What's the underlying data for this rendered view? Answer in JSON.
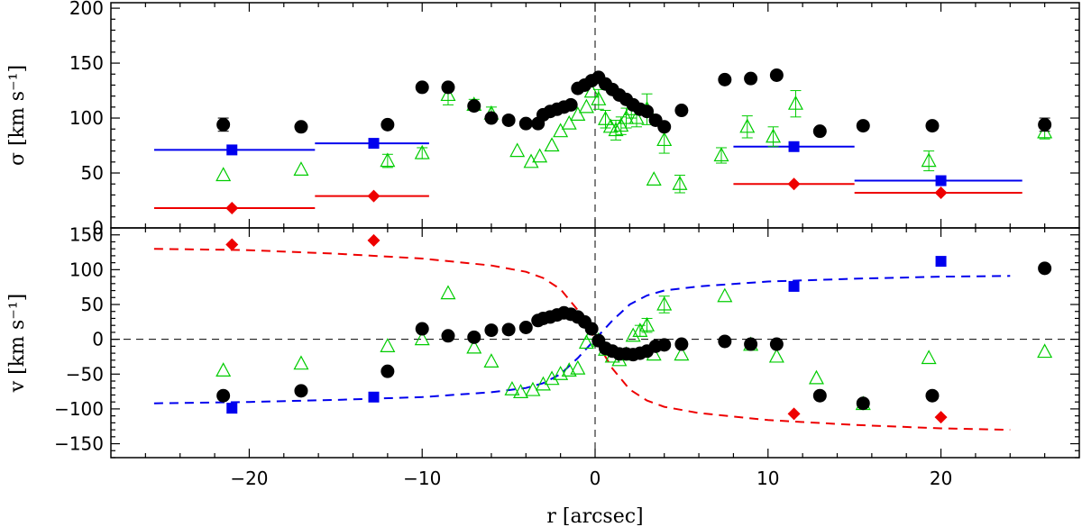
{
  "chart_data": [
    {
      "type": "scatter",
      "panel": "top",
      "xlabel": "r [arcsec]",
      "ylabel": "σ [km s⁻¹]",
      "xlim": [
        -28,
        28
      ],
      "ylim": [
        0,
        205
      ],
      "yticks": [
        0,
        50,
        100,
        150,
        200
      ],
      "series": [
        {
          "name": "black circles",
          "color": "#000000",
          "marker": "circle",
          "points": [
            [
              -21.5,
              94
            ],
            [
              -17,
              92
            ],
            [
              -12,
              94
            ],
            [
              -10,
              128
            ],
            [
              -8.5,
              128
            ],
            [
              -7,
              111
            ],
            [
              -6,
              100
            ],
            [
              -5,
              98
            ],
            [
              -4,
              95
            ],
            [
              -3.3,
              95
            ],
            [
              -3,
              103
            ],
            [
              -2.6,
              106
            ],
            [
              -2.2,
              108
            ],
            [
              -1.8,
              110
            ],
            [
              -1.4,
              112
            ],
            [
              -1,
              127
            ],
            [
              -0.6,
              130
            ],
            [
              -0.2,
              134
            ],
            [
              0.2,
              137
            ],
            [
              0.6,
              131
            ],
            [
              1,
              126
            ],
            [
              1.4,
              121
            ],
            [
              1.8,
              117
            ],
            [
              2.2,
              112
            ],
            [
              2.6,
              108
            ],
            [
              3,
              106
            ],
            [
              3.5,
              98
            ],
            [
              4,
              92
            ],
            [
              5,
              107
            ],
            [
              7.5,
              135
            ],
            [
              9,
              136
            ],
            [
              10.5,
              139
            ],
            [
              13,
              88
            ],
            [
              15.5,
              93
            ],
            [
              19.5,
              93
            ],
            [
              26,
              94
            ]
          ],
          "errors": [
            [
              -21.5,
              6
            ],
            [
              26,
              6
            ]
          ]
        },
        {
          "name": "green triangles",
          "color": "#00cc00",
          "marker": "triangle-open",
          "points": [
            [
              -21.5,
              48
            ],
            [
              -17,
              53
            ],
            [
              -12,
              61
            ],
            [
              -10,
              68
            ],
            [
              -8.5,
              121
            ],
            [
              -7,
              112
            ],
            [
              -6,
              104
            ],
            [
              -4.5,
              70
            ],
            [
              -3.7,
              60
            ],
            [
              -3.2,
              65
            ],
            [
              -2.5,
              75
            ],
            [
              -2,
              88
            ],
            [
              -1.5,
              95
            ],
            [
              -1,
              103
            ],
            [
              -0.5,
              110
            ],
            [
              -0.2,
              124
            ],
            [
              0.2,
              117
            ],
            [
              0.6,
              99
            ],
            [
              0.9,
              92
            ],
            [
              1.2,
              89
            ],
            [
              1.5,
              93
            ],
            [
              1.8,
              100
            ],
            [
              2.1,
              108
            ],
            [
              2.4,
              100
            ],
            [
              3,
              108
            ],
            [
              3.4,
              44
            ],
            [
              4,
              80
            ],
            [
              4.9,
              40
            ],
            [
              7.3,
              66
            ],
            [
              8.8,
              92
            ],
            [
              10.3,
              83
            ],
            [
              11.6,
              113
            ],
            [
              19.3,
              61
            ],
            [
              26,
              87
            ]
          ],
          "errors": [
            [
              -8.5,
              9
            ],
            [
              -7,
              5
            ],
            [
              -6,
              6
            ],
            [
              -12,
              6
            ],
            [
              -10,
              5
            ],
            [
              0.2,
              9
            ],
            [
              0.6,
              8
            ],
            [
              1.2,
              9
            ],
            [
              1.5,
              8
            ],
            [
              1.8,
              9
            ],
            [
              2.1,
              8
            ],
            [
              2.4,
              8
            ],
            [
              3,
              14
            ],
            [
              4,
              12
            ],
            [
              4.9,
              8
            ],
            [
              7.3,
              7
            ],
            [
              8.8,
              10
            ],
            [
              10.3,
              9
            ],
            [
              11.6,
              12
            ],
            [
              19.3,
              9
            ],
            [
              26,
              6
            ]
          ]
        },
        {
          "name": "blue squares",
          "color": "#0000ee",
          "marker": "square",
          "points": [
            [
              -21,
              71
            ],
            [
              -12.8,
              77
            ],
            [
              11.5,
              74
            ],
            [
              20,
              43
            ]
          ],
          "bins": [
            [
              -25.5,
              -16.2
            ],
            [
              -16.2,
              -9.6
            ],
            [
              8,
              15
            ],
            [
              15,
              24.7
            ]
          ]
        },
        {
          "name": "red diamonds",
          "color": "#ee0000",
          "marker": "diamond",
          "points": [
            [
              -21,
              18
            ],
            [
              -12.8,
              29
            ],
            [
              11.5,
              40
            ],
            [
              20,
              32
            ]
          ],
          "bins": [
            [
              -25.5,
              -16.2
            ],
            [
              -16.2,
              -9.6
            ],
            [
              8,
              15
            ],
            [
              15,
              24.7
            ]
          ]
        }
      ]
    },
    {
      "type": "scatter",
      "panel": "bottom",
      "xlabel": "r [arcsec]",
      "ylabel": "v [km s⁻¹]",
      "xlim": [
        -28,
        28
      ],
      "ylim": [
        -170,
        160
      ],
      "yticks": [
        -150,
        -100,
        -50,
        0,
        50,
        100,
        150
      ],
      "xticks": [
        -20,
        -10,
        0,
        10,
        20
      ],
      "series": [
        {
          "name": "black circles",
          "color": "#000000",
          "marker": "circle",
          "points": [
            [
              -21.5,
              -81
            ],
            [
              -17,
              -74
            ],
            [
              -12,
              -46
            ],
            [
              -10,
              15
            ],
            [
              -8.5,
              5
            ],
            [
              -7,
              3
            ],
            [
              -6,
              13
            ],
            [
              -5,
              14
            ],
            [
              -4,
              17
            ],
            [
              -3.3,
              27
            ],
            [
              -3,
              30
            ],
            [
              -2.6,
              32
            ],
            [
              -2.2,
              35
            ],
            [
              -1.8,
              38
            ],
            [
              -1.4,
              36
            ],
            [
              -1,
              32
            ],
            [
              -0.6,
              25
            ],
            [
              -0.2,
              15
            ],
            [
              0.2,
              -2
            ],
            [
              0.6,
              -13
            ],
            [
              1,
              -17
            ],
            [
              1.4,
              -21
            ],
            [
              1.8,
              -21
            ],
            [
              2.2,
              -22
            ],
            [
              2.6,
              -20
            ],
            [
              3,
              -17
            ],
            [
              3.5,
              -10
            ],
            [
              4,
              -8
            ],
            [
              5,
              -7
            ],
            [
              7.5,
              -3
            ],
            [
              9,
              -7
            ],
            [
              10.5,
              -7
            ],
            [
              13,
              -81
            ],
            [
              15.5,
              -92
            ],
            [
              19.5,
              -81
            ],
            [
              26,
              102
            ]
          ]
        },
        {
          "name": "green triangles",
          "color": "#00cc00",
          "marker": "triangle-open",
          "points": [
            [
              -21.5,
              -45
            ],
            [
              -17,
              -35
            ],
            [
              -12,
              -10
            ],
            [
              -10,
              0
            ],
            [
              -8.5,
              66
            ],
            [
              -7,
              -12
            ],
            [
              -6,
              -32
            ],
            [
              -4.8,
              -72
            ],
            [
              -4.3,
              -76
            ],
            [
              -3.6,
              -73
            ],
            [
              -3,
              -65
            ],
            [
              -2.5,
              -57
            ],
            [
              -2,
              -50
            ],
            [
              -1.5,
              -45
            ],
            [
              -1,
              -42
            ],
            [
              -0.5,
              -5
            ],
            [
              -0.2,
              8
            ],
            [
              0.2,
              -2
            ],
            [
              0.6,
              -15
            ],
            [
              1,
              -25
            ],
            [
              1.4,
              -30
            ],
            [
              1.8,
              -22
            ],
            [
              2.2,
              5
            ],
            [
              2.6,
              12
            ],
            [
              3,
              20
            ],
            [
              3.4,
              -22
            ],
            [
              4,
              50
            ],
            [
              5,
              -22
            ],
            [
              7.5,
              62
            ],
            [
              9,
              -8
            ],
            [
              10.5,
              -25
            ],
            [
              12.8,
              -56
            ],
            [
              15.5,
              -93
            ],
            [
              19.3,
              -27
            ],
            [
              26,
              -18
            ]
          ],
          "errors": [
            [
              2.6,
              8
            ],
            [
              3,
              10
            ],
            [
              4,
              12
            ]
          ]
        },
        {
          "name": "blue squares",
          "color": "#0000ee",
          "marker": "square",
          "points": [
            [
              -21,
              -99
            ],
            [
              -12.8,
              -83
            ],
            [
              11.5,
              76
            ],
            [
              20,
              112
            ]
          ]
        },
        {
          "name": "red diamonds",
          "color": "#ee0000",
          "marker": "diamond",
          "points": [
            [
              -21,
              136
            ],
            [
              -12.8,
              142
            ],
            [
              11.5,
              -107
            ],
            [
              20,
              -112
            ]
          ]
        },
        {
          "name": "blue dashed model",
          "color": "#0000ee",
          "style": "dashed",
          "points": [
            [
              -25.5,
              -92
            ],
            [
              -20,
              -90
            ],
            [
              -15,
              -87
            ],
            [
              -10,
              -83
            ],
            [
              -6,
              -76
            ],
            [
              -4,
              -70
            ],
            [
              -3,
              -63
            ],
            [
              -2,
              -50
            ],
            [
              -1,
              -27
            ],
            [
              0,
              0
            ],
            [
              1,
              27
            ],
            [
              2,
              50
            ],
            [
              3,
              63
            ],
            [
              4,
              70
            ],
            [
              6,
              76
            ],
            [
              10,
              83
            ],
            [
              15,
              87
            ],
            [
              20,
              90
            ],
            [
              24,
              91
            ]
          ]
        },
        {
          "name": "red dashed model",
          "color": "#ee0000",
          "style": "dashed",
          "points": [
            [
              -25.5,
              130
            ],
            [
              -20,
              128
            ],
            [
              -15,
              123
            ],
            [
              -10,
              116
            ],
            [
              -6,
              106
            ],
            [
              -4,
              97
            ],
            [
              -3,
              88
            ],
            [
              -2,
              72
            ],
            [
              -1,
              42
            ],
            [
              0,
              0
            ],
            [
              1,
              -42
            ],
            [
              2,
              -72
            ],
            [
              3,
              -88
            ],
            [
              4,
              -97
            ],
            [
              6,
              -106
            ],
            [
              10,
              -116
            ],
            [
              15,
              -123
            ],
            [
              20,
              -128
            ],
            [
              24,
              -130
            ]
          ]
        }
      ]
    }
  ]
}
